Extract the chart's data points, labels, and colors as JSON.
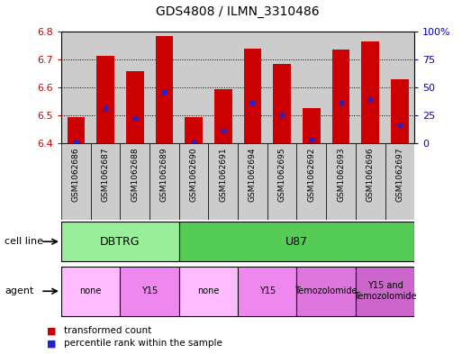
{
  "title": "GDS4808 / ILMN_3310486",
  "samples": [
    "GSM1062686",
    "GSM1062687",
    "GSM1062688",
    "GSM1062689",
    "GSM1062690",
    "GSM1062691",
    "GSM1062694",
    "GSM1062695",
    "GSM1062692",
    "GSM1062693",
    "GSM1062696",
    "GSM1062697"
  ],
  "bar_values": [
    6.495,
    6.715,
    6.66,
    6.785,
    6.495,
    6.595,
    6.74,
    6.685,
    6.525,
    6.735,
    6.765,
    6.63
  ],
  "percentile_values": [
    6.405,
    6.525,
    6.49,
    6.585,
    6.405,
    6.445,
    6.545,
    6.502,
    6.415,
    6.545,
    6.56,
    6.465
  ],
  "ylim_left": [
    6.4,
    6.8
  ],
  "ylim_right": [
    0,
    100
  ],
  "yticks_left": [
    6.4,
    6.5,
    6.6,
    6.7,
    6.8
  ],
  "yticks_right": [
    0,
    25,
    50,
    75,
    100
  ],
  "ytick_right_labels": [
    "0",
    "25",
    "50",
    "75",
    "100%"
  ],
  "bar_color": "#cc0000",
  "percentile_color": "#2222cc",
  "bar_bottom": 6.4,
  "col_bg_color": "#cccccc",
  "cell_line_groups": [
    {
      "label": "DBTRG",
      "start": 0,
      "end": 3,
      "color": "#99ee99"
    },
    {
      "label": "U87",
      "start": 4,
      "end": 11,
      "color": "#55cc55"
    }
  ],
  "agent_groups": [
    {
      "label": "none",
      "start": 0,
      "end": 1,
      "color": "#ffbbff"
    },
    {
      "label": "Y15",
      "start": 2,
      "end": 3,
      "color": "#ee88ee"
    },
    {
      "label": "none",
      "start": 4,
      "end": 5,
      "color": "#ffbbff"
    },
    {
      "label": "Y15",
      "start": 6,
      "end": 7,
      "color": "#ee88ee"
    },
    {
      "label": "Temozolomide",
      "start": 8,
      "end": 9,
      "color": "#dd77dd"
    },
    {
      "label": "Y15 and\nTemozolomide",
      "start": 10,
      "end": 11,
      "color": "#cc66cc"
    }
  ],
  "legend_red": "transformed count",
  "legend_blue": "percentile rank within the sample",
  "xlabel_color": "#cc0000",
  "ylabel_right_color": "#0000cc"
}
